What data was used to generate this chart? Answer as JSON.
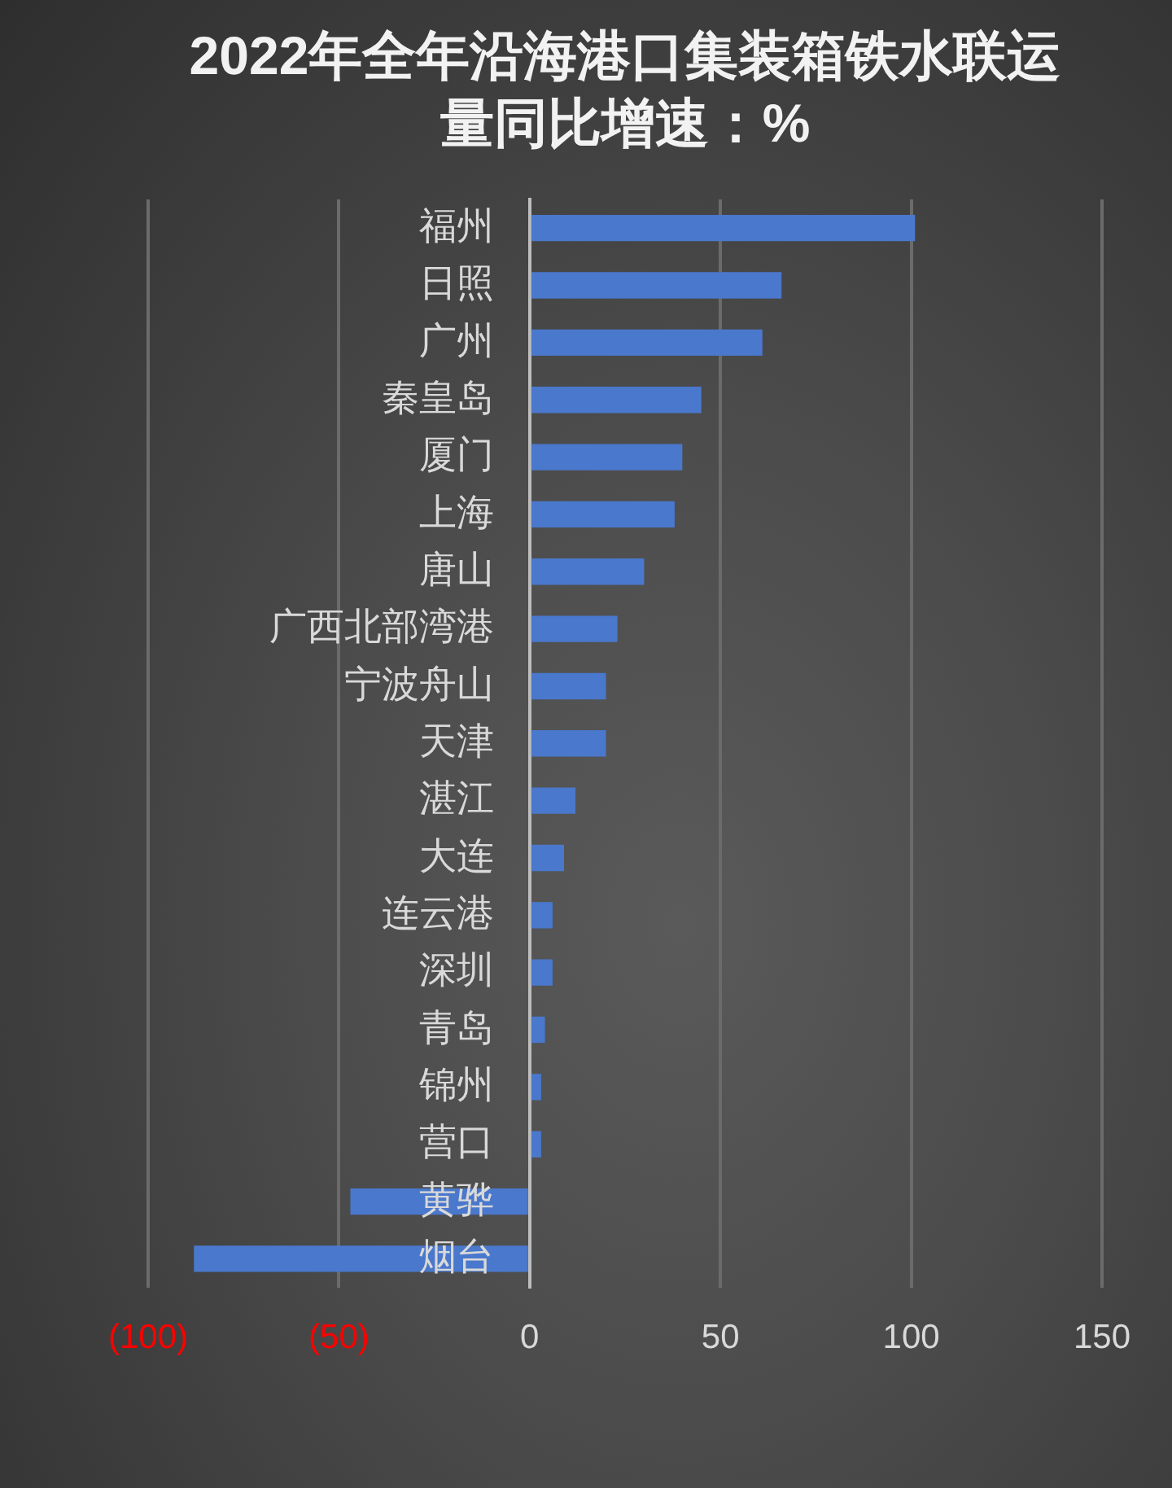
{
  "chart_data": {
    "type": "bar",
    "orientation": "horizontal",
    "title": "2022年全年沿海港口集装箱铁水联运量同比增速：%",
    "categories": [
      "福州",
      "日照",
      "广州",
      "秦皇岛",
      "厦门",
      "上海",
      "唐山",
      "广西北部湾港",
      "宁波舟山",
      "天津",
      "湛江",
      "大连",
      "连云港",
      "深圳",
      "青岛",
      "锦州",
      "营口",
      "黄骅",
      "烟台"
    ],
    "values": [
      101,
      66,
      61,
      45,
      40,
      38,
      30,
      23,
      20,
      20,
      12,
      9,
      6,
      6,
      4,
      3,
      3,
      -47,
      -88
    ],
    "color": "#4a78cc",
    "xlim": [
      -100,
      150
    ],
    "xticks": [
      {
        "value": -100,
        "label": "(100)"
      },
      {
        "value": -50,
        "label": "(50)"
      },
      0,
      50,
      100,
      150
    ],
    "grid": "x"
  }
}
